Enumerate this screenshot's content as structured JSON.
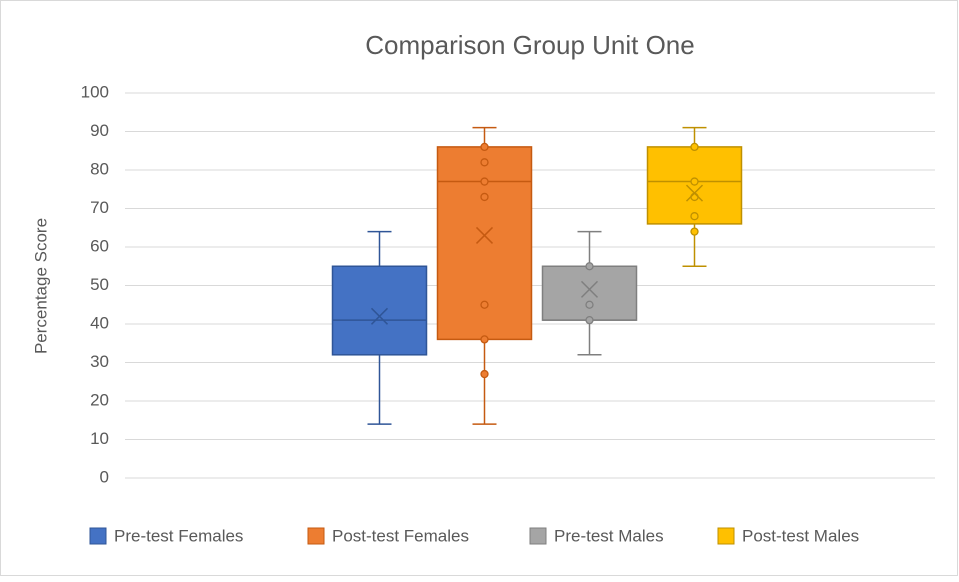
{
  "chart_data": {
    "type": "box",
    "title": "Comparison Group Unit One",
    "y_label": "Percentage Score",
    "ylim": [
      0,
      100
    ],
    "yticks": [
      0,
      10,
      20,
      30,
      40,
      50,
      60,
      70,
      80,
      90,
      100
    ],
    "grid": true,
    "legend": "bottom",
    "series": [
      {
        "name": "Pre-test Females",
        "color": "#4472c4",
        "stroke": "#2f5597",
        "min": 14,
        "q1": 32,
        "median": 41,
        "q3": 55,
        "max": 64,
        "mean": 42,
        "points": []
      },
      {
        "name": "Post-test Females",
        "color": "#ed7d31",
        "stroke": "#c55a11",
        "min": 14,
        "q1": 36,
        "median": 77,
        "q3": 86,
        "max": 91,
        "mean": 63,
        "points": [
          86,
          82,
          77,
          73,
          45,
          36,
          27
        ]
      },
      {
        "name": "Pre-test Males",
        "color": "#a5a5a5",
        "stroke": "#7f7f7f",
        "min": 32,
        "q1": 41,
        "median": 41,
        "q3": 55,
        "max": 64,
        "mean": 49,
        "points": [
          55,
          45,
          41
        ]
      },
      {
        "name": "Post-test Males",
        "color": "#ffc000",
        "stroke": "#bf9000",
        "min": 55,
        "q1": 66,
        "median": 77,
        "q3": 86,
        "max": 91,
        "mean": 74,
        "points": [
          86,
          77,
          73,
          68,
          64
        ]
      }
    ]
  }
}
